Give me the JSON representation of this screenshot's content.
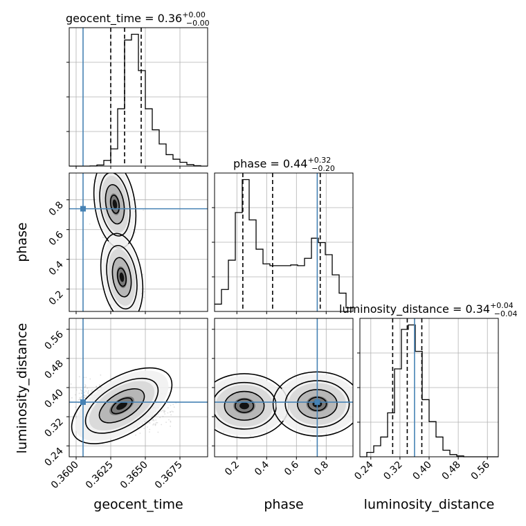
{
  "chart_data": {
    "type": "corner",
    "parameters": [
      {
        "name": "geocent_time",
        "label": "geocent_time",
        "range": [
          0.3595,
          0.3695
        ],
        "ticks": [
          0.36,
          0.3625,
          0.365,
          0.3675
        ],
        "tick_labels": [
          "0.3600",
          "0.3625",
          "0.3650",
          "0.3675"
        ],
        "truth": 0.3605
      },
      {
        "name": "phase",
        "label": "phase",
        "range": [
          0.05,
          0.98
        ],
        "ticks": [
          0.2,
          0.4,
          0.6,
          0.8
        ],
        "tick_labels": [
          "0.2",
          "0.4",
          "0.6",
          "0.8"
        ],
        "truth": 0.74
      },
      {
        "name": "luminosity_distance",
        "label": "luminosity_distance",
        "range": [
          0.21,
          0.59
        ],
        "ticks": [
          0.24,
          0.32,
          0.4,
          0.48,
          0.56
        ],
        "tick_labels": [
          "0.24",
          "0.32",
          "0.40",
          "0.48",
          "0.56"
        ],
        "truth": 0.36
      }
    ],
    "titles": [
      {
        "main": "geocent_time = 0.36",
        "sup": "+0.00",
        "sub": "−0.00"
      },
      {
        "main": "phase = 0.44",
        "sup": "+0.32",
        "sub": "−0.20"
      },
      {
        "main": "luminosity_distance = 0.34",
        "sup": "+0.04",
        "sub": "−0.04"
      }
    ],
    "histograms": [
      {
        "param": "geocent_time",
        "bin_edges": [
          0.3595,
          0.36,
          0.3605,
          0.361,
          0.3615,
          0.362,
          0.3625,
          0.363,
          0.3635,
          0.364,
          0.3645,
          0.365,
          0.3655,
          0.366,
          0.3665,
          0.367,
          0.3675,
          0.368,
          0.3685,
          0.369,
          0.3695
        ],
        "counts": [
          0,
          0,
          0,
          0.5,
          3,
          15,
          45,
          150,
          330,
          345,
          250,
          150,
          95,
          58,
          30,
          18,
          10,
          4,
          1,
          0
        ],
        "quantiles": [
          0.3625,
          0.3635,
          0.3647
        ]
      },
      {
        "param": "phase",
        "bin_edges": [
          0.05,
          0.0965,
          0.143,
          0.1895,
          0.236,
          0.2825,
          0.329,
          0.3755,
          0.422,
          0.4685,
          0.515,
          0.5615,
          0.608,
          0.6545,
          0.701,
          0.7475,
          0.794,
          0.8405,
          0.887,
          0.9335,
          0.98
        ],
        "counts": [
          20,
          60,
          140,
          270,
          360,
          250,
          170,
          130,
          125,
          125,
          125,
          127,
          125,
          145,
          200,
          188,
          155,
          100,
          50,
          10
        ],
        "quantiles": [
          0.24,
          0.44,
          0.76
        ]
      },
      {
        "param": "luminosity_distance",
        "bin_edges": [
          0.21,
          0.229,
          0.248,
          0.267,
          0.286,
          0.305,
          0.324,
          0.343,
          0.362,
          0.381,
          0.4,
          0.419,
          0.438,
          0.457,
          0.476,
          0.495,
          0.514,
          0.533,
          0.552,
          0.571,
          0.59
        ],
        "counts": [
          0,
          10,
          25,
          45,
          100,
          200,
          290,
          300,
          240,
          130,
          80,
          45,
          15,
          5,
          2,
          0,
          0,
          0,
          0,
          0
        ],
        "quantiles": [
          0.3,
          0.34,
          0.38
        ]
      }
    ],
    "density_2d": [
      {
        "x": "geocent_time",
        "y": "phase",
        "modes": [
          {
            "x": 0.3628,
            "y": 0.77
          },
          {
            "x": 0.3633,
            "y": 0.28
          }
        ]
      },
      {
        "x": "geocent_time",
        "y": "luminosity_distance",
        "modes": [
          {
            "x": 0.3633,
            "y": 0.35
          }
        ]
      },
      {
        "x": "phase",
        "y": "luminosity_distance",
        "modes": [
          {
            "x": 0.25,
            "y": 0.35
          },
          {
            "x": 0.74,
            "y": 0.355
          }
        ]
      }
    ],
    "truth_color": "#4682b4",
    "grid": true
  }
}
